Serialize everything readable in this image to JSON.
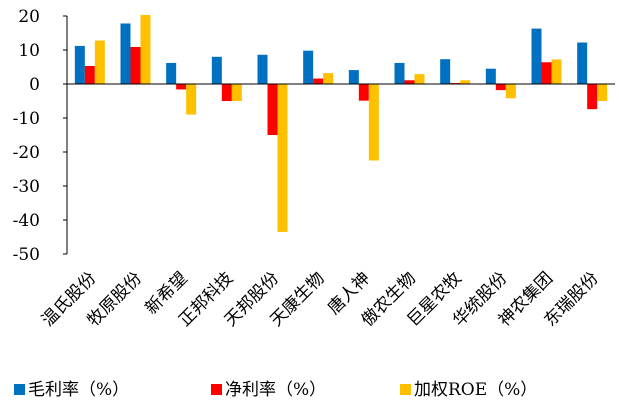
{
  "chart_data": {
    "type": "bar",
    "title": "",
    "xlabel": "",
    "ylabel": "",
    "ylim": [
      -50,
      20
    ],
    "yticks": [
      20,
      10,
      0,
      -10,
      -20,
      -30,
      -40,
      -50
    ],
    "grid": false,
    "legend_position": "bottom",
    "categories": [
      "温氏股份",
      "牧原股份",
      "新希望",
      "正邦科技",
      "天邦股份",
      "天康生物",
      "唐人神",
      "傲农生物",
      "巨星农牧",
      "华统股份",
      "神农集团",
      "东瑞股份"
    ],
    "series": [
      {
        "name": "毛利率（%）",
        "color": "#0070C0",
        "values": [
          11.2,
          17.8,
          6.2,
          8.0,
          8.6,
          9.8,
          4.1,
          6.2,
          7.3,
          4.5,
          16.3,
          12.2
        ]
      },
      {
        "name": "净利率（%）",
        "color": "#FF0000",
        "values": [
          5.3,
          10.9,
          -1.6,
          -5.0,
          -15.0,
          1.6,
          -4.9,
          1.1,
          0.3,
          -1.8,
          6.4,
          -7.4
        ]
      },
      {
        "name": "加权ROE（%）",
        "color": "#FFC000",
        "values": [
          12.8,
          20.3,
          -9.0,
          -5.0,
          -43.5,
          3.2,
          -22.5,
          2.9,
          1.1,
          -4.2,
          7.2,
          -5.0
        ]
      }
    ]
  }
}
